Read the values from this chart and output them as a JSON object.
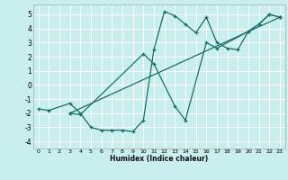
{
  "xlabel": "Humidex (Indice chaleur)",
  "bg_color": "#c8eeed",
  "grid_color": "#ffffff",
  "line_color": "#1a6e6a",
  "xlim": [
    -0.5,
    23.5
  ],
  "ylim": [
    -4.5,
    5.7
  ],
  "xticks": [
    0,
    1,
    2,
    3,
    4,
    5,
    6,
    7,
    8,
    9,
    10,
    11,
    12,
    13,
    14,
    15,
    16,
    17,
    18,
    19,
    20,
    21,
    22,
    23
  ],
  "yticks": [
    -4,
    -3,
    -2,
    -1,
    0,
    1,
    2,
    3,
    4,
    5
  ],
  "series": [
    {
      "x": [
        0,
        1,
        3,
        4,
        5,
        6,
        7,
        8,
        9,
        10,
        11,
        12,
        13,
        14,
        15,
        16,
        17,
        18,
        19,
        20,
        21,
        22,
        23
      ],
      "y": [
        -1.7,
        -1.8,
        -1.3,
        -2.0,
        -3.0,
        -3.2,
        -3.2,
        -3.2,
        -3.3,
        -2.5,
        2.5,
        5.2,
        4.9,
        4.3,
        3.7,
        4.8,
        3.0,
        2.6,
        2.5,
        3.8,
        4.3,
        5.0,
        4.8
      ]
    },
    {
      "x": [
        3,
        4,
        10,
        11,
        13,
        14,
        16,
        17,
        20,
        21,
        22,
        23
      ],
      "y": [
        -2.0,
        -2.1,
        2.2,
        1.5,
        -1.5,
        -2.5,
        3.0,
        2.6,
        3.8,
        4.3,
        5.0,
        4.8
      ]
    },
    {
      "x": [
        3,
        23
      ],
      "y": [
        -2.0,
        4.8
      ]
    }
  ]
}
